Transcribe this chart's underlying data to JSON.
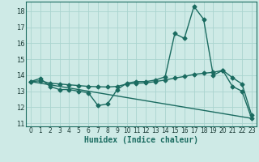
{
  "xlabel": "Humidex (Indice chaleur)",
  "bg_color": "#ceeae6",
  "grid_color": "#aad4cf",
  "line_color": "#1a6b60",
  "spine_color": "#1a6b60",
  "xlim": [
    -0.5,
    23.5
  ],
  "ylim": [
    10.8,
    18.6
  ],
  "yticks": [
    11,
    12,
    13,
    14,
    15,
    16,
    17,
    18
  ],
  "xticks": [
    0,
    1,
    2,
    3,
    4,
    5,
    6,
    7,
    8,
    9,
    10,
    11,
    12,
    13,
    14,
    15,
    16,
    17,
    18,
    19,
    20,
    21,
    22,
    23
  ],
  "line1_x": [
    0,
    1,
    2,
    3,
    4,
    5,
    6,
    7,
    8,
    9,
    10,
    11,
    12,
    13,
    14,
    15,
    16,
    17,
    18,
    19,
    20,
    21,
    22,
    23
  ],
  "line1_y": [
    13.6,
    13.8,
    13.3,
    13.1,
    13.1,
    13.0,
    12.9,
    12.1,
    12.2,
    13.1,
    13.5,
    13.6,
    13.6,
    13.7,
    13.9,
    16.6,
    16.3,
    18.3,
    17.5,
    14.0,
    14.3,
    13.3,
    13.0,
    11.3
  ],
  "line2_x": [
    0,
    1,
    2,
    3,
    4,
    5,
    6,
    7,
    8,
    9,
    10,
    11,
    12,
    13,
    14,
    15,
    16,
    17,
    18,
    19,
    20,
    21,
    22,
    23
  ],
  "line2_y": [
    13.6,
    13.65,
    13.5,
    13.45,
    13.4,
    13.35,
    13.3,
    13.28,
    13.26,
    13.3,
    13.45,
    13.5,
    13.52,
    13.6,
    13.7,
    13.82,
    13.92,
    14.05,
    14.12,
    14.18,
    14.3,
    13.85,
    13.45,
    11.5
  ],
  "line3_x": [
    0,
    23
  ],
  "line3_y": [
    13.6,
    11.3
  ],
  "linewidth": 1.0,
  "marker_size": 2.5,
  "xlabel_fontsize": 7,
  "tick_fontsize": 5.5
}
